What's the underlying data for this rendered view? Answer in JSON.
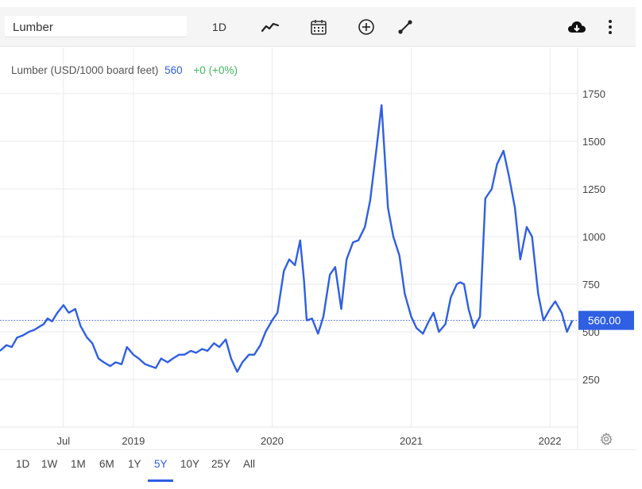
{
  "toolbar": {
    "symbol_value": "Lumber",
    "interval_label": "1D",
    "icons": {
      "line_style": "line-chart-icon",
      "calendar": "calendar-icon",
      "add": "plus-circle-icon",
      "draw": "draw-line-icon",
      "download": "cloud-download-icon",
      "more": "more-vertical-icon"
    }
  },
  "legend": {
    "name": "Lumber (USD/1000 board feet)",
    "value": "560",
    "change": "+0 (+0%)"
  },
  "price_label": "560.00",
  "range_buttons": [
    "1D",
    "1W",
    "1M",
    "6M",
    "1Y",
    "5Y",
    "10Y",
    "25Y",
    "All"
  ],
  "active_range": "5Y",
  "colors": {
    "line": "#2f5fe3",
    "price_badge": "#2f5fe3",
    "positive_change": "#3cb95c",
    "grid": "#eaeaea"
  },
  "chart_data": {
    "type": "line",
    "series": [
      {
        "name": "Lumber (USD/1000 board feet)",
        "x": [
          "2018-01-15",
          "2018-02-01",
          "2018-02-15",
          "2018-03-01",
          "2018-03-15",
          "2018-04-01",
          "2018-04-15",
          "2018-05-01",
          "2018-05-10",
          "2018-05-20",
          "2018-06-01",
          "2018-06-15",
          "2018-07-01",
          "2018-07-15",
          "2018-08-01",
          "2018-08-15",
          "2018-09-01",
          "2018-09-15",
          "2018-10-01",
          "2018-10-15",
          "2018-11-01",
          "2018-11-15",
          "2018-12-01",
          "2018-12-15",
          "2019-01-01",
          "2019-01-15",
          "2019-02-01",
          "2019-02-15",
          "2019-03-01",
          "2019-03-15",
          "2019-04-01",
          "2019-04-15",
          "2019-05-01",
          "2019-05-15",
          "2019-06-01",
          "2019-06-15",
          "2019-07-01",
          "2019-07-15",
          "2019-08-01",
          "2019-08-15",
          "2019-09-01",
          "2019-09-15",
          "2019-10-01",
          "2019-10-15",
          "2019-11-01",
          "2019-11-15",
          "2019-12-01",
          "2019-12-15",
          "2020-01-01",
          "2020-01-15",
          "2020-02-01",
          "2020-02-15",
          "2020-03-01",
          "2020-03-15",
          "2020-03-25",
          "2020-04-01",
          "2020-04-15",
          "2020-05-01",
          "2020-05-15",
          "2020-06-01",
          "2020-06-15",
          "2020-07-01",
          "2020-07-15",
          "2020-08-01",
          "2020-08-15",
          "2020-09-01",
          "2020-09-15",
          "2020-10-01",
          "2020-10-15",
          "2020-11-01",
          "2020-11-15",
          "2020-12-01",
          "2020-12-15",
          "2021-01-01",
          "2021-01-15",
          "2021-02-01",
          "2021-02-15",
          "2021-03-01",
          "2021-03-15",
          "2021-04-01",
          "2021-04-15",
          "2021-05-01",
          "2021-05-10",
          "2021-05-20",
          "2021-06-01",
          "2021-06-15",
          "2021-07-01",
          "2021-07-15",
          "2021-08-01",
          "2021-08-15",
          "2021-09-01",
          "2021-09-15",
          "2021-10-01",
          "2021-10-15",
          "2021-11-01",
          "2021-11-15",
          "2021-12-01",
          "2021-12-15",
          "2022-01-01",
          "2022-01-15",
          "2022-02-01",
          "2022-02-15",
          "2022-03-01"
        ],
        "values": [
          400,
          430,
          420,
          470,
          480,
          500,
          510,
          530,
          540,
          570,
          555,
          600,
          640,
          600,
          620,
          530,
          470,
          440,
          360,
          340,
          320,
          340,
          330,
          420,
          380,
          360,
          330,
          320,
          310,
          360,
          340,
          360,
          380,
          380,
          400,
          390,
          410,
          400,
          440,
          420,
          460,
          360,
          290,
          340,
          380,
          380,
          430,
          500,
          560,
          600,
          820,
          880,
          850,
          980,
          770,
          560,
          570,
          490,
          580,
          800,
          840,
          620,
          880,
          970,
          980,
          1050,
          1190,
          1450,
          1690,
          1150,
          1000,
          900,
          700,
          580,
          520,
          490,
          550,
          600,
          500,
          540,
          680,
          750,
          760,
          750,
          620,
          520,
          580,
          1200,
          1250,
          1380,
          1450,
          1320,
          1150,
          880,
          1050,
          1000,
          700,
          560,
          620,
          660,
          600,
          500,
          560
        ]
      }
    ],
    "x_tick_labels": [
      "Jul",
      "2019",
      "2020",
      "2021",
      "2022"
    ],
    "y_ticks": [
      250,
      500,
      750,
      1000,
      1250,
      1500,
      1750
    ],
    "xlim": [
      "2018-01-15",
      "2022-03-15"
    ],
    "ylim": [
      0,
      2000
    ],
    "current_price": 560,
    "grid": true,
    "legend": "top-left"
  }
}
